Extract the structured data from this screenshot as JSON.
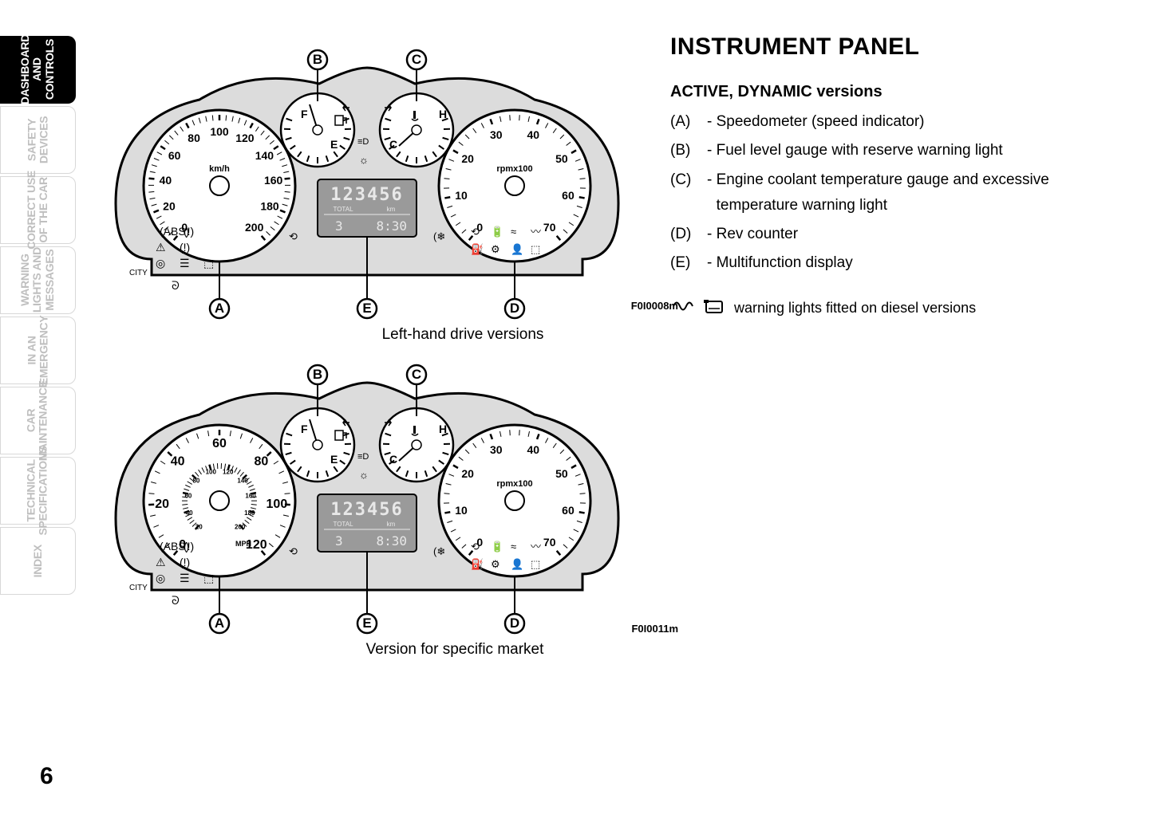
{
  "page_number": "6",
  "sidebar": {
    "tabs": [
      {
        "label": "DASHBOARD\nAND\nCONTROLS",
        "active": true
      },
      {
        "label": "SAFETY\nDEVICES",
        "active": false
      },
      {
        "label": "CORRECT USE\nOF THE CAR",
        "active": false
      },
      {
        "label": "WARNING\nLIGHTS AND\nMESSAGES",
        "active": false
      },
      {
        "label": "IN AN\nEMERGENCY",
        "active": false
      },
      {
        "label": "CAR\nMAINTENANCE",
        "active": false
      },
      {
        "label": "TECHNICAL\nSPECIFICATIONS",
        "active": false
      },
      {
        "label": "INDEX",
        "active": false
      }
    ]
  },
  "heading": "INSTRUMENT PANEL",
  "subheading": "ACTIVE, DYNAMIC versions",
  "legend": [
    {
      "key": "(A)",
      "desc": "Speedometer (speed indicator)"
    },
    {
      "key": "(B)",
      "desc": "Fuel level gauge with reserve warning light"
    },
    {
      "key": "(C)",
      "desc": "Engine coolant temperature gauge and excessive temperature warning light"
    },
    {
      "key": "(D)",
      "desc": "Rev counter"
    },
    {
      "key": "(E)",
      "desc": "Multifunction display"
    }
  ],
  "diesel_note": "warning lights fitted on diesel versions",
  "diagram1": {
    "caption": "Left-hand drive versions",
    "figure_code": "F0I0008m",
    "callouts": [
      "A",
      "B",
      "C",
      "D",
      "E"
    ],
    "speedo": {
      "unit": "km/h",
      "ticks": [
        "0",
        "20",
        "40",
        "60",
        "80",
        "100",
        "120",
        "140",
        "160",
        "180",
        "200"
      ]
    },
    "tacho": {
      "unit": "rpmx100",
      "ticks": [
        "0",
        "10",
        "20",
        "30",
        "40",
        "50",
        "60",
        "70"
      ]
    },
    "fuel": {
      "labels": [
        "F",
        "E"
      ]
    },
    "temp": {
      "labels": [
        "C",
        "H"
      ]
    },
    "display": {
      "odometer": "123456",
      "total_label": "TOTAL",
      "km_label": "km",
      "trip": "3",
      "time": "8:30"
    },
    "city_label": "CITY"
  },
  "diagram2": {
    "caption": "Version for specific market",
    "figure_code": "F0I0011m",
    "callouts": [
      "A",
      "B",
      "C",
      "D",
      "E"
    ],
    "speedo": {
      "unit_outer": "",
      "unit_mph": "MPH",
      "ticks_outer": [
        "0",
        "20",
        "40",
        "60",
        "80",
        "100",
        "120"
      ],
      "ticks_inner": [
        "20",
        "40",
        "60",
        "80",
        "100",
        "120",
        "140",
        "160",
        "180",
        "200"
      ]
    },
    "tacho": {
      "unit": "rpmx100",
      "ticks": [
        "0",
        "10",
        "20",
        "30",
        "40",
        "50",
        "60",
        "70"
      ]
    },
    "fuel": {
      "labels": [
        "F",
        "E"
      ]
    },
    "temp": {
      "labels": [
        "C",
        "H"
      ]
    },
    "display": {
      "odometer": "123456",
      "total_label": "TOTAL",
      "km_label": "km",
      "trip": "3",
      "time": "8:30"
    },
    "city_label": "CITY"
  },
  "colors": {
    "cluster_stroke": "#000000",
    "cluster_fill": "#dcdcdc",
    "display_bg": "#9a9a9a",
    "display_text": "#e8e8e8",
    "callout_fill": "#ffffff",
    "callout_stroke": "#000000"
  }
}
